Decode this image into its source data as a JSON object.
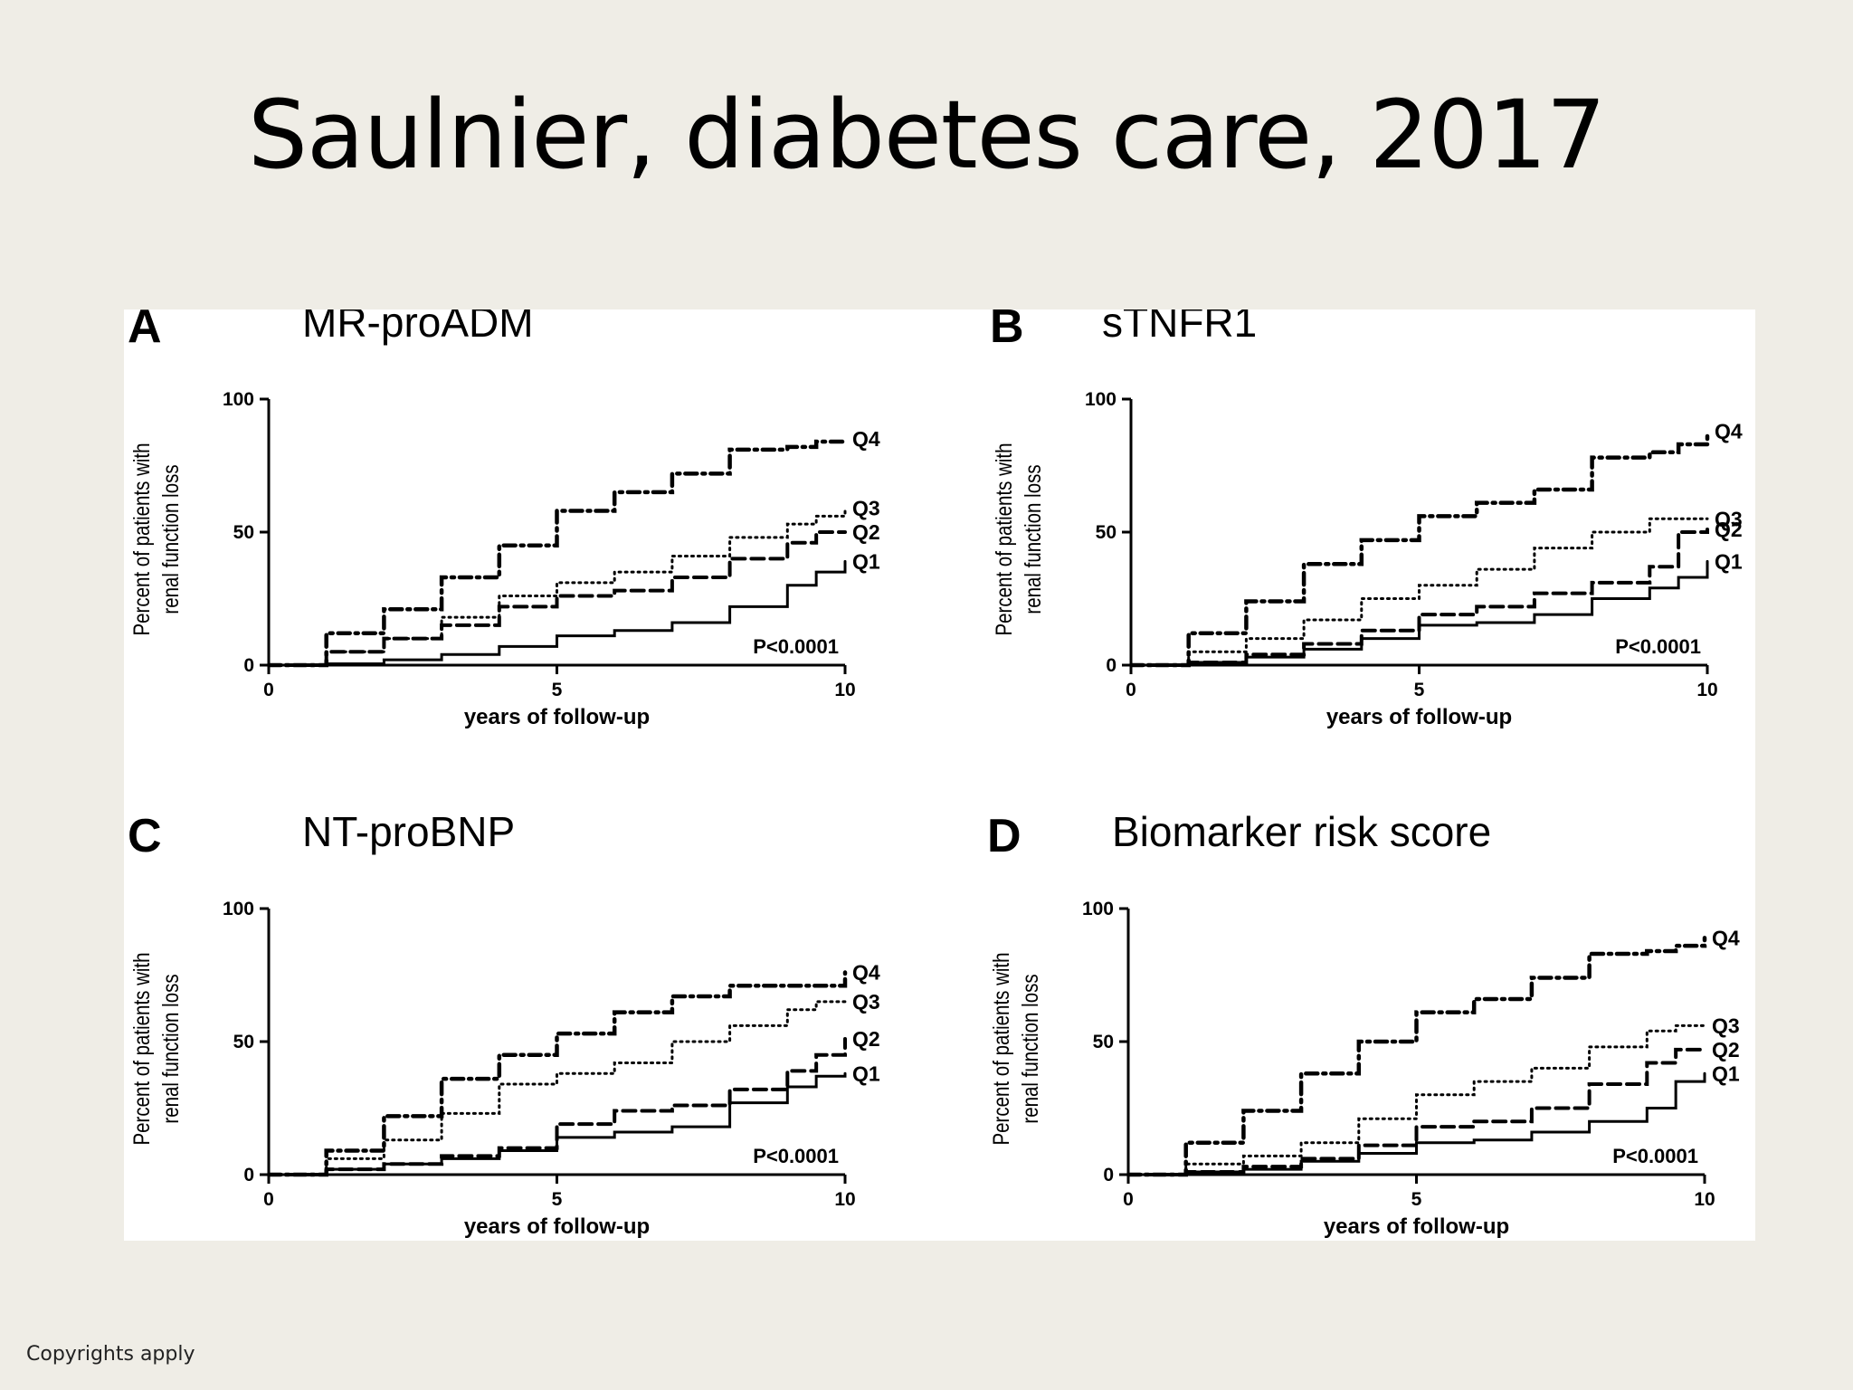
{
  "slide": {
    "title": "Saulnier, diabetes care, 2017",
    "copyright": "Copyrights apply"
  },
  "chart_data": [
    {
      "type": "line",
      "panel": "A",
      "title": "MR-proADM",
      "xlabel": "years of follow-up",
      "ylabel": [
        "Percent of patients with",
        "renal function loss"
      ],
      "xlim": [
        0,
        10
      ],
      "ylim": [
        0,
        100
      ],
      "xticks": [
        0,
        5,
        10
      ],
      "yticks": [
        0,
        50,
        100
      ],
      "annotation": "P<0.0001",
      "series": [
        {
          "name": "Q1",
          "style": "solid",
          "x": [
            0,
            1,
            2,
            3,
            4,
            5,
            6,
            7,
            8,
            9,
            9.5,
            10
          ],
          "y": [
            0,
            0.5,
            2,
            4,
            7,
            11,
            13,
            16,
            22,
            30,
            35,
            39
          ]
        },
        {
          "name": "Q2",
          "style": "dashed",
          "x": [
            0,
            1,
            2,
            3,
            4,
            5,
            6,
            7,
            8,
            9,
            9.5,
            10
          ],
          "y": [
            0,
            5,
            10,
            15,
            22,
            26,
            28,
            33,
            40,
            46,
            50,
            50
          ]
        },
        {
          "name": "Q3",
          "style": "dotted",
          "x": [
            0,
            1,
            2,
            3,
            4,
            5,
            6,
            7,
            8,
            9,
            9.5,
            10
          ],
          "y": [
            0,
            5,
            10,
            18,
            26,
            31,
            35,
            41,
            48,
            53,
            56,
            59
          ]
        },
        {
          "name": "Q4",
          "style": "dashdot",
          "x": [
            0,
            1,
            2,
            3,
            4,
            5,
            6,
            7,
            8,
            9,
            9.5,
            10
          ],
          "y": [
            0,
            12,
            21,
            33,
            45,
            58,
            65,
            72,
            81,
            82,
            84,
            85
          ]
        }
      ]
    },
    {
      "type": "line",
      "panel": "B",
      "title": "sTNFR1",
      "xlabel": "years of follow-up",
      "ylabel": [
        "Percent of patients with",
        "renal function loss"
      ],
      "xlim": [
        0,
        10
      ],
      "ylim": [
        0,
        100
      ],
      "xticks": [
        0,
        5,
        10
      ],
      "yticks": [
        0,
        50,
        100
      ],
      "annotation": "P<0.0001",
      "series": [
        {
          "name": "Q1",
          "style": "solid",
          "x": [
            0,
            1,
            2,
            3,
            4,
            5,
            6,
            7,
            8,
            9,
            9.5,
            10
          ],
          "y": [
            0,
            1,
            3,
            6,
            10,
            15,
            16,
            19,
            25,
            29,
            33,
            39
          ]
        },
        {
          "name": "Q2",
          "style": "dashed",
          "x": [
            0,
            1,
            2,
            3,
            4,
            5,
            6,
            7,
            8,
            9,
            9.5,
            10
          ],
          "y": [
            0,
            1,
            4,
            8,
            13,
            19,
            22,
            27,
            31,
            37,
            50,
            51
          ]
        },
        {
          "name": "Q3",
          "style": "dotted",
          "x": [
            0,
            1,
            2,
            3,
            4,
            5,
            6,
            7,
            8,
            9,
            9.5,
            10
          ],
          "y": [
            0,
            5,
            10,
            17,
            25,
            30,
            36,
            44,
            50,
            55,
            55,
            55
          ]
        },
        {
          "name": "Q4",
          "style": "dashdot",
          "x": [
            0,
            1,
            2,
            3,
            4,
            5,
            6,
            7,
            8,
            9,
            9.5,
            10
          ],
          "y": [
            0,
            12,
            24,
            38,
            47,
            56,
            61,
            66,
            78,
            80,
            83,
            88
          ]
        }
      ]
    },
    {
      "type": "line",
      "panel": "C",
      "title": "NT-proBNP",
      "xlabel": "years of follow-up",
      "ylabel": [
        "Percent of patients with",
        "renal function loss"
      ],
      "xlim": [
        0,
        10
      ],
      "ylim": [
        0,
        100
      ],
      "xticks": [
        0,
        5,
        10
      ],
      "yticks": [
        0,
        50,
        100
      ],
      "annotation": "P<0.0001",
      "series": [
        {
          "name": "Q1",
          "style": "solid",
          "x": [
            0,
            1,
            2,
            3,
            4,
            5,
            6,
            7,
            8,
            9,
            9.5,
            10
          ],
          "y": [
            0,
            2,
            4,
            6,
            9,
            14,
            16,
            18,
            27,
            33,
            37,
            38
          ]
        },
        {
          "name": "Q2",
          "style": "dashed",
          "x": [
            0,
            1,
            2,
            3,
            4,
            5,
            6,
            7,
            8,
            9,
            9.5,
            10
          ],
          "y": [
            0,
            2,
            4,
            7,
            10,
            19,
            24,
            26,
            32,
            39,
            45,
            51
          ]
        },
        {
          "name": "Q3",
          "style": "dotted",
          "x": [
            0,
            1,
            2,
            3,
            4,
            5,
            6,
            7,
            8,
            9,
            9.5,
            10
          ],
          "y": [
            0,
            6,
            13,
            23,
            34,
            38,
            42,
            50,
            56,
            62,
            65,
            65
          ]
        },
        {
          "name": "Q4",
          "style": "dashdot",
          "x": [
            0,
            1,
            2,
            3,
            4,
            5,
            6,
            7,
            8,
            9,
            9.5,
            10
          ],
          "y": [
            0,
            9,
            22,
            36,
            45,
            53,
            61,
            67,
            71,
            71,
            71,
            76
          ]
        }
      ]
    },
    {
      "type": "line",
      "panel": "D",
      "title": "Biomarker risk score",
      "xlabel": "years of follow-up",
      "ylabel": [
        "Percent of patients with",
        "renal function loss"
      ],
      "xlim": [
        0,
        10
      ],
      "ylim": [
        0,
        100
      ],
      "xticks": [
        0,
        5,
        10
      ],
      "yticks": [
        0,
        50,
        100
      ],
      "annotation": "P<0.0001",
      "series": [
        {
          "name": "Q1",
          "style": "solid",
          "x": [
            0,
            1,
            2,
            3,
            4,
            5,
            6,
            7,
            8,
            9,
            9.5,
            10
          ],
          "y": [
            0,
            1,
            2,
            5,
            8,
            12,
            13,
            16,
            20,
            25,
            35,
            38
          ]
        },
        {
          "name": "Q2",
          "style": "dashed",
          "x": [
            0,
            1,
            2,
            3,
            4,
            5,
            6,
            7,
            8,
            9,
            9.5,
            10
          ],
          "y": [
            0,
            1,
            3,
            6,
            11,
            18,
            20,
            25,
            34,
            42,
            47,
            47
          ]
        },
        {
          "name": "Q3",
          "style": "dotted",
          "x": [
            0,
            1,
            2,
            3,
            4,
            5,
            6,
            7,
            8,
            9,
            9.5,
            10
          ],
          "y": [
            0,
            4,
            7,
            12,
            21,
            30,
            35,
            40,
            48,
            54,
            56,
            56
          ]
        },
        {
          "name": "Q4",
          "style": "dashdot",
          "x": [
            0,
            1,
            2,
            3,
            4,
            5,
            6,
            7,
            8,
            9,
            9.5,
            10
          ],
          "y": [
            0,
            12,
            24,
            38,
            50,
            61,
            66,
            74,
            83,
            84,
            86,
            89
          ]
        }
      ]
    }
  ]
}
